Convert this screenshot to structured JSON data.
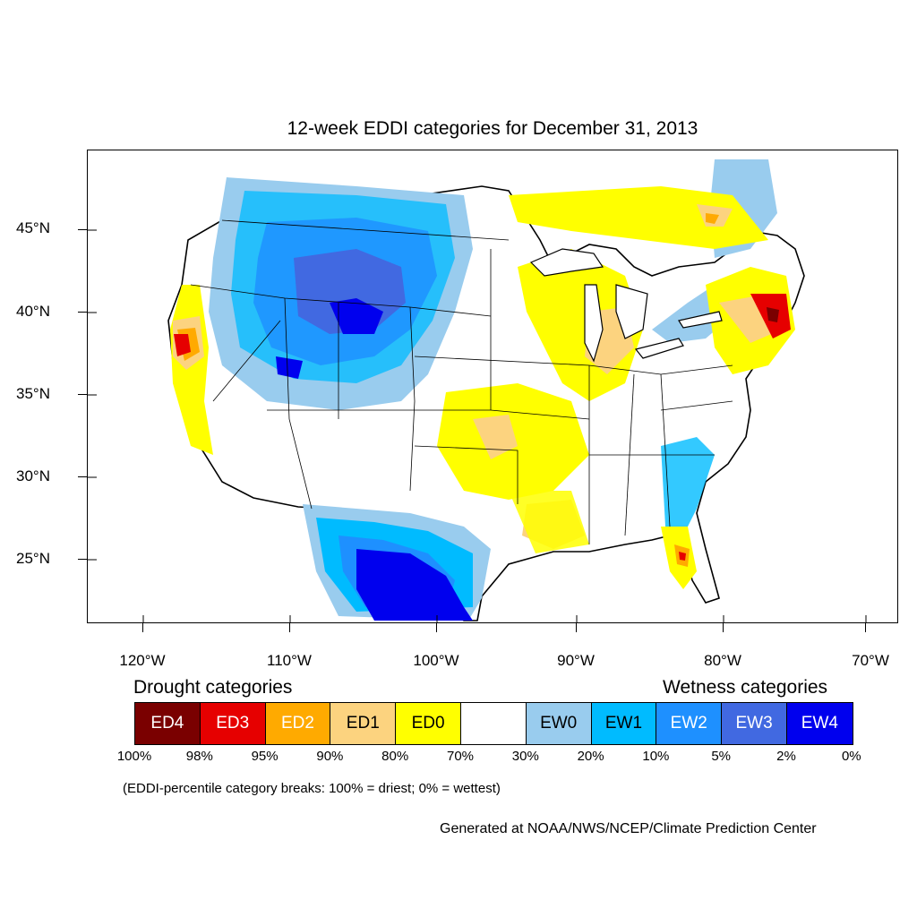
{
  "title": "12-week EDDI categories for December 31, 2013",
  "map": {
    "lat_labels": [
      "45°N",
      "40°N",
      "35°N",
      "30°N",
      "25°N"
    ],
    "lon_labels": [
      "120°W",
      "110°W",
      "100°W",
      "90°W",
      "80°W",
      "70°W"
    ]
  },
  "legend": {
    "drought_heading": "Drought categories",
    "wetness_heading": "Wetness categories",
    "categories": [
      {
        "label": "ED4",
        "color": "#7a0000",
        "text_color": "#ffffff"
      },
      {
        "label": "ED3",
        "color": "#e60000",
        "text_color": "#ffffff"
      },
      {
        "label": "ED2",
        "color": "#ffaa00",
        "text_color": "#ffffff"
      },
      {
        "label": "ED1",
        "color": "#fcd37f",
        "text_color": "#000000"
      },
      {
        "label": "ED0",
        "color": "#ffff00",
        "text_color": "#000000"
      },
      {
        "label": "",
        "color": "#ffffff",
        "text_color": "#000000"
      },
      {
        "label": "EW0",
        "color": "#99ccee",
        "text_color": "#000000"
      },
      {
        "label": "EW1",
        "color": "#00bbff",
        "text_color": "#000000"
      },
      {
        "label": "EW2",
        "color": "#1e90ff",
        "text_color": "#ffffff"
      },
      {
        "label": "EW3",
        "color": "#4169e1",
        "text_color": "#ffffff"
      },
      {
        "label": "EW4",
        "color": "#0000ee",
        "text_color": "#ffffff"
      }
    ],
    "percentiles": [
      "100%",
      "98%",
      "95%",
      "90%",
      "80%",
      "70%",
      "30%",
      "20%",
      "10%",
      "5%",
      "2%",
      "0%"
    ],
    "note": "(EDDI-percentile category breaks: 100% = driest; 0% = wettest)"
  },
  "credit": "Generated at NOAA/NWS/NCEP/Climate Prediction Center"
}
